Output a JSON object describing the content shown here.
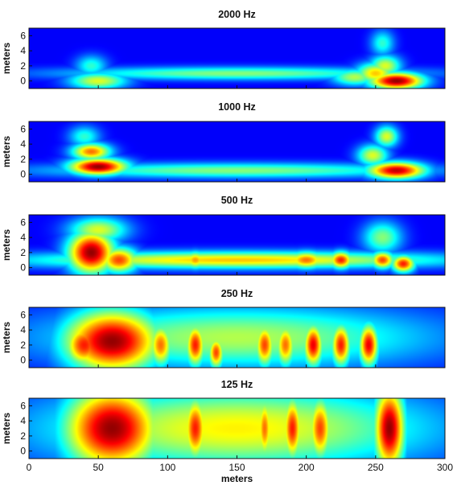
{
  "chart_data": {
    "type": "heatmap",
    "colormap": "jet",
    "x_label": "meters",
    "y_label": "meters",
    "xlim": [
      0,
      300
    ],
    "ylim": [
      -1,
      7
    ],
    "x_ticks": [
      "0",
      "50",
      "100",
      "150",
      "200",
      "250",
      "300"
    ],
    "y_ticks": [
      "0",
      "2",
      "4",
      "6"
    ],
    "panels": [
      {
        "title": "2000 Hz",
        "hotspots": [
          {
            "x": 265,
            "y": 0,
            "sx": 14,
            "sy": 0.8,
            "v": 1.0
          },
          {
            "x": 250,
            "y": 1,
            "sx": 10,
            "sy": 1.0,
            "v": 0.65
          },
          {
            "x": 257,
            "y": 2,
            "sx": 8,
            "sy": 1.0,
            "v": 0.55
          },
          {
            "x": 50,
            "y": 0,
            "sx": 15,
            "sy": 0.8,
            "v": 0.55
          },
          {
            "x": 45,
            "y": 2,
            "sx": 8,
            "sy": 1.0,
            "v": 0.35
          },
          {
            "x": 150,
            "y": 1,
            "sx": 90,
            "sy": 0.6,
            "v": 0.45
          },
          {
            "x": 255,
            "y": 5,
            "sx": 6,
            "sy": 1.2,
            "v": 0.35
          },
          {
            "x": 235,
            "y": 0.5,
            "sx": 12,
            "sy": 0.8,
            "v": 0.5
          }
        ]
      },
      {
        "title": "1000 Hz",
        "hotspots": [
          {
            "x": 50,
            "y": 1,
            "sx": 15,
            "sy": 0.8,
            "v": 1.0
          },
          {
            "x": 45,
            "y": 3,
            "sx": 10,
            "sy": 0.8,
            "v": 0.75
          },
          {
            "x": 265,
            "y": 0.5,
            "sx": 15,
            "sy": 0.8,
            "v": 0.95
          },
          {
            "x": 258,
            "y": 5,
            "sx": 6,
            "sy": 1.0,
            "v": 0.55
          },
          {
            "x": 150,
            "y": 0.5,
            "sx": 100,
            "sy": 0.7,
            "v": 0.45
          },
          {
            "x": 40,
            "y": 5,
            "sx": 8,
            "sy": 1.0,
            "v": 0.35
          },
          {
            "x": 248,
            "y": 2.5,
            "sx": 8,
            "sy": 1.0,
            "v": 0.55
          }
        ]
      },
      {
        "title": "500 Hz",
        "hotspots": [
          {
            "x": 45,
            "y": 2,
            "sx": 12,
            "sy": 2.0,
            "v": 1.0
          },
          {
            "x": 65,
            "y": 1,
            "sx": 10,
            "sy": 1.2,
            "v": 0.8
          },
          {
            "x": 150,
            "y": 1,
            "sx": 110,
            "sy": 0.8,
            "v": 0.65
          },
          {
            "x": 225,
            "y": 1,
            "sx": 6,
            "sy": 0.8,
            "v": 0.85
          },
          {
            "x": 270,
            "y": 0.5,
            "sx": 6,
            "sy": 0.8,
            "v": 0.85
          },
          {
            "x": 255,
            "y": 1,
            "sx": 6,
            "sy": 0.8,
            "v": 0.8
          },
          {
            "x": 200,
            "y": 1,
            "sx": 10,
            "sy": 0.8,
            "v": 0.75
          },
          {
            "x": 120,
            "y": 1,
            "sx": 6,
            "sy": 0.8,
            "v": 0.7
          },
          {
            "x": 255,
            "y": 4,
            "sx": 10,
            "sy": 1.5,
            "v": 0.45
          },
          {
            "x": 50,
            "y": 5,
            "sx": 15,
            "sy": 1.2,
            "v": 0.55
          }
        ]
      },
      {
        "title": "250 Hz",
        "hotspots": [
          {
            "x": 60,
            "y": 2.5,
            "sx": 25,
            "sy": 3.0,
            "v": 1.0
          },
          {
            "x": 40,
            "y": 2,
            "sx": 10,
            "sy": 2.0,
            "v": 0.85
          },
          {
            "x": 95,
            "y": 2,
            "sx": 6,
            "sy": 2.0,
            "v": 0.75
          },
          {
            "x": 120,
            "y": 2,
            "sx": 5,
            "sy": 2.0,
            "v": 0.85
          },
          {
            "x": 135,
            "y": 1,
            "sx": 4,
            "sy": 1.5,
            "v": 0.8
          },
          {
            "x": 170,
            "y": 2,
            "sx": 5,
            "sy": 2.0,
            "v": 0.8
          },
          {
            "x": 185,
            "y": 2,
            "sx": 5,
            "sy": 2.0,
            "v": 0.75
          },
          {
            "x": 205,
            "y": 2,
            "sx": 5,
            "sy": 2.0,
            "v": 0.9
          },
          {
            "x": 225,
            "y": 2,
            "sx": 5,
            "sy": 2.0,
            "v": 0.85
          },
          {
            "x": 245,
            "y": 2,
            "sx": 5,
            "sy": 2.0,
            "v": 0.9
          },
          {
            "x": 150,
            "y": 3,
            "sx": 100,
            "sy": 3.0,
            "v": 0.5
          }
        ]
      },
      {
        "title": "125 Hz",
        "hotspots": [
          {
            "x": 60,
            "y": 3,
            "sx": 25,
            "sy": 4.0,
            "v": 1.0
          },
          {
            "x": 260,
            "y": 3,
            "sx": 8,
            "sy": 4.0,
            "v": 1.0
          },
          {
            "x": 120,
            "y": 3,
            "sx": 6,
            "sy": 3.0,
            "v": 0.85
          },
          {
            "x": 150,
            "y": 3,
            "sx": 100,
            "sy": 4.0,
            "v": 0.6
          },
          {
            "x": 190,
            "y": 3,
            "sx": 5,
            "sy": 3.0,
            "v": 0.85
          },
          {
            "x": 210,
            "y": 3,
            "sx": 6,
            "sy": 3.0,
            "v": 0.8
          },
          {
            "x": 170,
            "y": 3,
            "sx": 4,
            "sy": 3.0,
            "v": 0.75
          }
        ]
      }
    ]
  }
}
